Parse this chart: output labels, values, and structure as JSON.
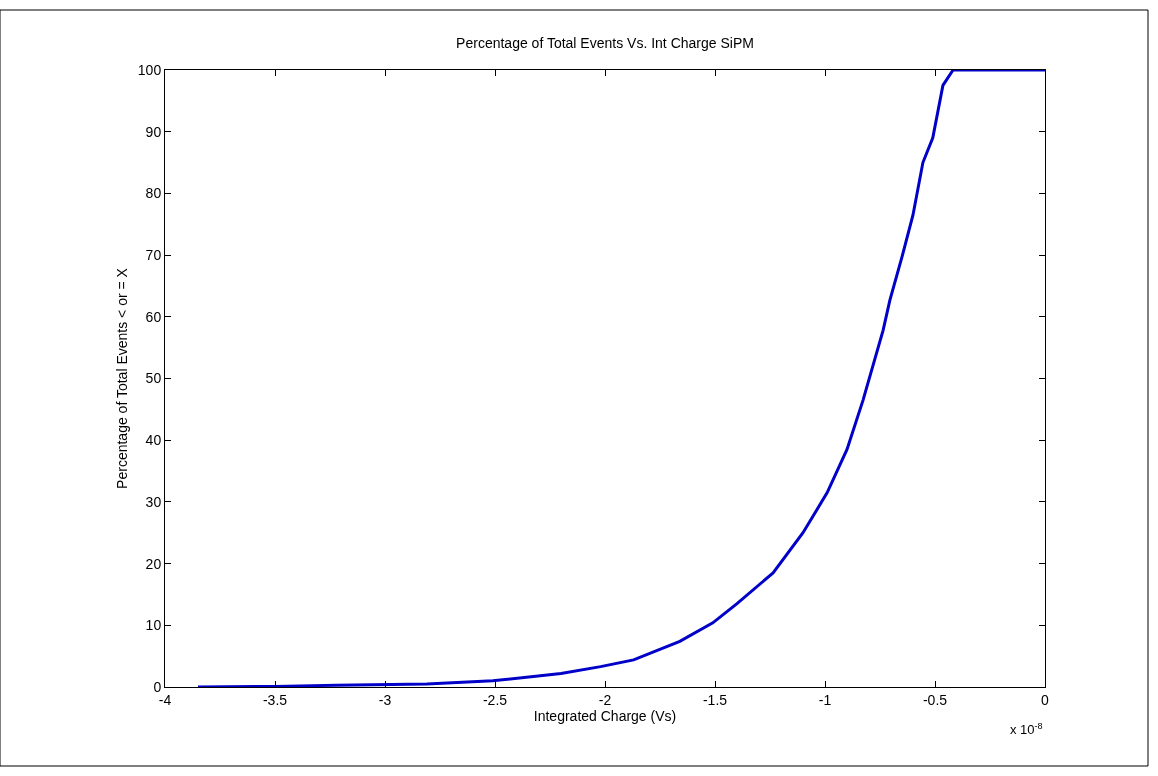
{
  "chart_data": {
    "type": "line",
    "title": "Percentage of Total Events Vs. Int Charge SiPM",
    "xlabel": "Integrated Charge (Vs)",
    "ylabel": "Percentage of Total Events < or = X",
    "annotations": [
      "x 10$^{-8}$"
    ],
    "x": [
      -3.85,
      -3.5,
      -3.22,
      -2.81,
      -2.51,
      -2.2,
      -2.02,
      -1.87,
      -1.66,
      -1.51,
      -1.4,
      -1.236,
      -1.1,
      -0.99,
      -0.9,
      -0.827,
      -0.736,
      -0.705,
      -0.65,
      -0.6,
      -0.555,
      -0.51,
      -0.464,
      -0.418,
      0
    ],
    "series": [
      {
        "color": "#0000c8",
        "values": [
          0,
          0.1,
          0.3,
          0.5,
          1.0,
          2.2,
          3.3,
          4.4,
          7.4,
          10.4,
          13.5,
          18.5,
          25,
          31.5,
          38.5,
          46.5,
          57.8,
          62.7,
          69.7,
          76.5,
          85,
          89,
          97.5,
          100,
          100
        ]
      }
    ],
    "xlim": [
      -4,
      0
    ],
    "xticks": [
      -4,
      -3.5,
      -3,
      -2.5,
      -2,
      -1.5,
      -1,
      -0.5,
      0
    ],
    "ylim": [
      0,
      100
    ],
    "yticks": [
      0,
      10,
      20,
      30,
      40,
      50,
      60,
      70,
      80,
      90,
      100
    ],
    "grid": false,
    "marker": "none",
    "line_style": "solid"
  }
}
